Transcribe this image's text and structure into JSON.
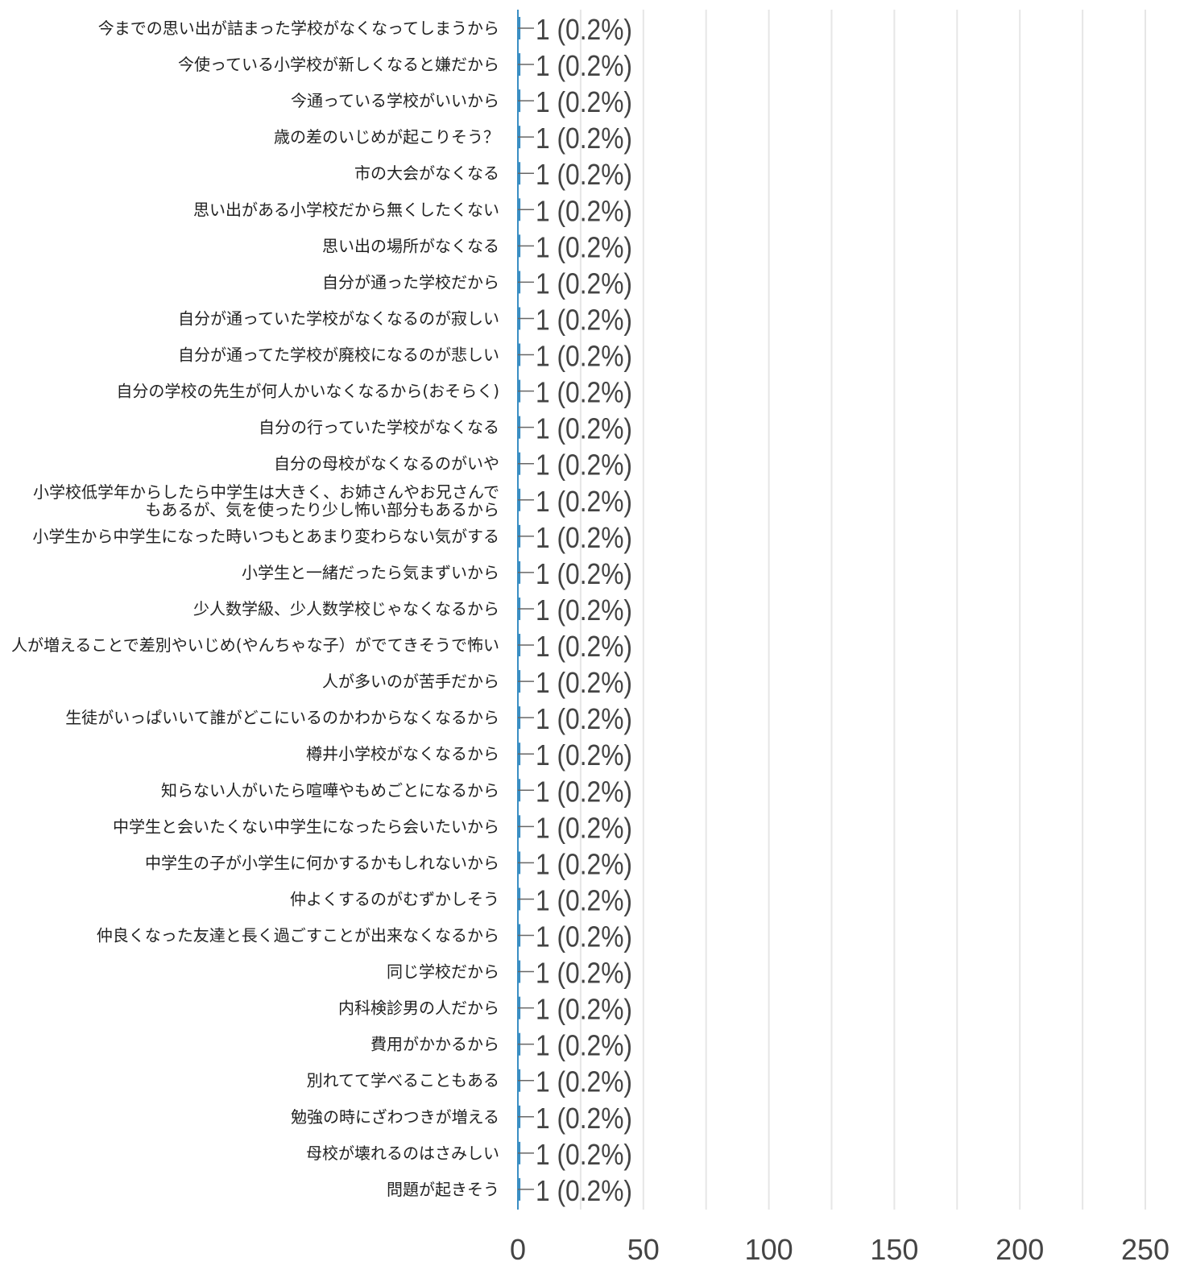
{
  "chart_data": {
    "type": "bar",
    "orientation": "horizontal",
    "title": "",
    "xlabel": "",
    "ylabel": "",
    "xlim": [
      0,
      250
    ],
    "ticks": [
      0,
      50,
      100,
      150,
      200,
      250
    ],
    "tick_labels": [
      "0",
      "50",
      "100",
      "150",
      "200",
      "250"
    ],
    "grid": true,
    "bar_color": "#3a8ec3",
    "categories": [
      [
        "今までの思い出が詰まった学校がなくなってしまうから"
      ],
      [
        "今使っている小学校が新しくなると嫌だから"
      ],
      [
        "今通っている学校がいいから"
      ],
      [
        "歳の差のいじめが起こりそう？"
      ],
      [
        "市の大会がなくなる"
      ],
      [
        "思い出がある小学校だから無くしたくない"
      ],
      [
        "思い出の場所がなくなる"
      ],
      [
        "自分が通った学校だから"
      ],
      [
        "自分が通っていた学校がなくなるのが寂しい"
      ],
      [
        "自分が通ってた学校が廃校になるのが悲しい"
      ],
      [
        "自分の学校の先生が何人かいなくなるから(おそらく)"
      ],
      [
        "自分の行っていた学校がなくなる"
      ],
      [
        "自分の母校がなくなるのがいや"
      ],
      [
        "小学校低学年からしたら中学生は大きく、お姉さんやお兄さんで",
        "もあるが、気を使ったり少し怖い部分もあるから"
      ],
      [
        "小学生から中学生になった時いつもとあまり変わらない気がする"
      ],
      [
        "小学生と一緒だったら気まずいから"
      ],
      [
        "少人数学級、少人数学校じゃなくなるから"
      ],
      [
        "人が増えることで差別やいじめ(やんちゃな子）がでてきそうで怖い"
      ],
      [
        "人が多いのが苦手だから"
      ],
      [
        "生徒がいっぱいいて誰がどこにいるのかわからなくなるから"
      ],
      [
        "樽井小学校がなくなるから"
      ],
      [
        "知らない人がいたら喧嘩やもめごとになるから"
      ],
      [
        "中学生と会いたくない中学生になったら会いたいから"
      ],
      [
        "中学生の子が小学生に何かするかもしれないから"
      ],
      [
        "仲よくするのがむずかしそう"
      ],
      [
        "仲良くなった友達と長く過ごすことが出来なくなるから"
      ],
      [
        "同じ学校だから"
      ],
      [
        "内科検診男の人だから"
      ],
      [
        "費用がかかるから"
      ],
      [
        "別れてて学べることもある"
      ],
      [
        "勉強の時にざわつきが増える"
      ],
      [
        "母校が壊れるのはさみしい"
      ],
      [
        "問題が起きそう"
      ]
    ],
    "values": [
      1,
      1,
      1,
      1,
      1,
      1,
      1,
      1,
      1,
      1,
      1,
      1,
      1,
      1,
      1,
      1,
      1,
      1,
      1,
      1,
      1,
      1,
      1,
      1,
      1,
      1,
      1,
      1,
      1,
      1,
      1,
      1,
      1
    ],
    "value_labels": [
      "1 (0.2%)",
      "1 (0.2%)",
      "1 (0.2%)",
      "1 (0.2%)",
      "1 (0.2%)",
      "1 (0.2%)",
      "1 (0.2%)",
      "1 (0.2%)",
      "1 (0.2%)",
      "1 (0.2%)",
      "1 (0.2%)",
      "1 (0.2%)",
      "1 (0.2%)",
      "1 (0.2%)",
      "1 (0.2%)",
      "1 (0.2%)",
      "1 (0.2%)",
      "1 (0.2%)",
      "1 (0.2%)",
      "1 (0.2%)",
      "1 (0.2%)",
      "1 (0.2%)",
      "1 (0.2%)",
      "1 (0.2%)",
      "1 (0.2%)",
      "1 (0.2%)",
      "1 (0.2%)",
      "1 (0.2%)",
      "1 (0.2%)",
      "1 (0.2%)",
      "1 (0.2%)",
      "1 (0.2%)",
      "1 (0.2%)"
    ]
  }
}
